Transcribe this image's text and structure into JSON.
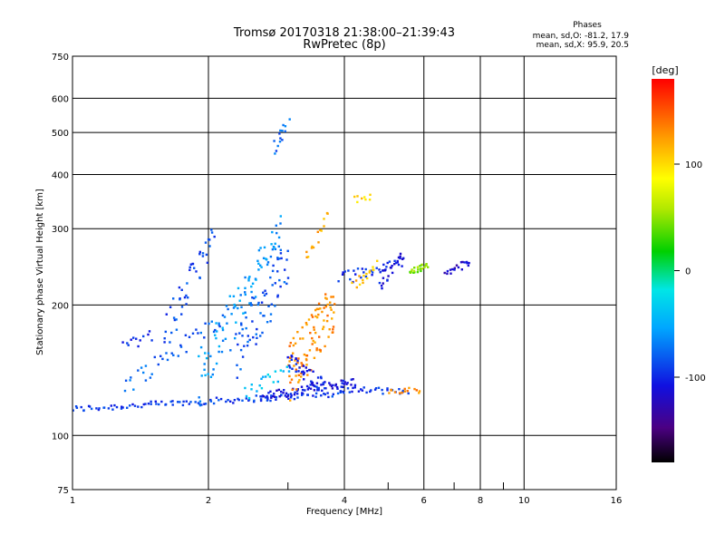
{
  "chart_data": {
    "type": "scatter",
    "title": "Tromsø 20170318 21:38:00–21:39:43",
    "subtitle": "RwPretec (8p)",
    "phases_stats": {
      "heading": "Phases",
      "line1": "mean, sd,O:  -81.2, 17.9",
      "line2": "mean, sd,X:  95.9, 20.5"
    },
    "xlabel": "Frequency [MHz]",
    "ylabel": "Stationary phase Virtual Height [km]",
    "x_scale": "log",
    "y_scale": "log",
    "xlim": [
      1,
      16
    ],
    "ylim": [
      75,
      750
    ],
    "xticks": [
      1,
      2,
      4,
      6,
      8,
      10,
      16
    ],
    "xticks_minor": [
      3,
      5,
      7,
      9
    ],
    "yticks": [
      75,
      100,
      200,
      300,
      400,
      500,
      600,
      750
    ],
    "grid": true,
    "colorbar": {
      "label": "[deg]",
      "min": -180,
      "max": 180,
      "ticks": [
        100,
        0,
        -100
      ]
    },
    "series": [
      {
        "traces": [
          {
            "f0": 1.0,
            "f1": 4.0,
            "h0": 115,
            "h1": 125,
            "n": 110,
            "jit": 2,
            "c": -95
          },
          {
            "f0": 2.6,
            "f1": 4.2,
            "h0": 123,
            "h1": 133,
            "n": 70,
            "jit": 3,
            "c": -110
          },
          {
            "f0": 3.9,
            "f1": 5.5,
            "h0": 128,
            "h1": 126,
            "n": 30,
            "jit": 2,
            "c": -100
          },
          {
            "f0": 5.0,
            "f1": 5.9,
            "h0": 127,
            "h1": 127,
            "n": 14,
            "jit": 2,
            "c": 130
          },
          {
            "f0": 1.3,
            "f1": 2.2,
            "h0": 130,
            "h1": 190,
            "n": 40,
            "jit": 8,
            "c": -80
          },
          {
            "f0": 1.9,
            "f1": 2.9,
            "h0": 135,
            "h1": 300,
            "n": 90,
            "jit": 25,
            "c": -60
          },
          {
            "f0": 2.3,
            "f1": 3.0,
            "h0": 150,
            "h1": 260,
            "n": 70,
            "jit": 30,
            "c": -85
          },
          {
            "f0": 1.6,
            "f1": 2.05,
            "h0": 170,
            "h1": 290,
            "n": 45,
            "jit": 20,
            "c": -90
          },
          {
            "f0": 1.3,
            "f1": 1.5,
            "h0": 160,
            "h1": 170,
            "n": 12,
            "jit": 5,
            "c": -100
          },
          {
            "f0": 3.0,
            "f1": 3.8,
            "h0": 140,
            "h1": 200,
            "n": 100,
            "jit": 25,
            "c": 130
          },
          {
            "f0": 3.3,
            "f1": 3.7,
            "h0": 250,
            "h1": 330,
            "n": 14,
            "jit": 10,
            "c": 120
          },
          {
            "f0": 3.9,
            "f1": 5.0,
            "h0": 230,
            "h1": 245,
            "n": 25,
            "jit": 8,
            "c": -100
          },
          {
            "f0": 4.2,
            "f1": 4.7,
            "h0": 225,
            "h1": 245,
            "n": 16,
            "jit": 8,
            "c": 110
          },
          {
            "f0": 4.8,
            "f1": 5.4,
            "h0": 225,
            "h1": 260,
            "n": 30,
            "jit": 12,
            "c": -110
          },
          {
            "f0": 5.6,
            "f1": 6.1,
            "h0": 240,
            "h1": 245,
            "n": 22,
            "jit": 4,
            "c": 45
          },
          {
            "f0": 6.7,
            "f1": 7.6,
            "h0": 240,
            "h1": 250,
            "n": 18,
            "jit": 6,
            "c": -120
          },
          {
            "f0": 4.2,
            "f1": 4.6,
            "h0": 350,
            "h1": 355,
            "n": 8,
            "jit": 6,
            "c": 100
          },
          {
            "f0": 2.8,
            "f1": 3.0,
            "h0": 460,
            "h1": 520,
            "n": 14,
            "jit": 20,
            "c": -80
          },
          {
            "f0": 3.0,
            "f1": 3.6,
            "h0": 150,
            "h1": 130,
            "n": 40,
            "jit": 6,
            "c": -105
          },
          {
            "f0": 2.4,
            "f1": 3.0,
            "h0": 125,
            "h1": 140,
            "n": 20,
            "jit": 5,
            "c": -40
          }
        ]
      }
    ]
  }
}
